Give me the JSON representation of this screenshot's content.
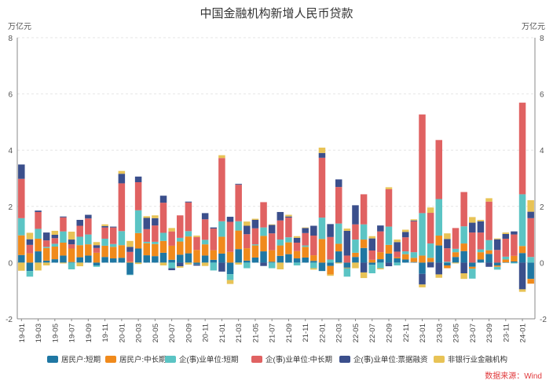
{
  "chart_data": {
    "type": "bar",
    "stacked": true,
    "title": "中国金融机构新增人民币贷款",
    "y_unit_left": "万亿元",
    "y_unit_right": "万亿元",
    "ylim": [
      -2,
      8
    ],
    "yticks": [
      -2,
      0,
      2,
      4,
      6,
      8
    ],
    "grid": true,
    "legend_position": "bottom",
    "source_note": "数据来源：Wind",
    "x_tick_labels": [
      "19-01",
      "19-03",
      "19-05",
      "19-07",
      "19-09",
      "19-11",
      "20-01",
      "20-03",
      "20-05",
      "20-07",
      "20-09",
      "20-11",
      "21-01",
      "21-03",
      "21-05",
      "21-07",
      "21-09",
      "21-11",
      "22-01",
      "22-03",
      "22-05",
      "22-07",
      "22-09",
      "22-11",
      "23-01",
      "23-03",
      "23-05",
      "23-07",
      "23-09",
      "23-11",
      "24-01"
    ],
    "categories": [
      "19-01",
      "19-02",
      "19-03",
      "19-04",
      "19-05",
      "19-06",
      "19-07",
      "19-08",
      "19-09",
      "19-10",
      "19-11",
      "19-12",
      "20-01",
      "20-02",
      "20-03",
      "20-04",
      "20-05",
      "20-06",
      "20-07",
      "20-08",
      "20-09",
      "20-10",
      "20-11",
      "20-12",
      "21-01",
      "21-02",
      "21-03",
      "21-04",
      "21-05",
      "21-06",
      "21-07",
      "21-08",
      "21-09",
      "21-10",
      "21-11",
      "21-12",
      "22-01",
      "22-02",
      "22-03",
      "22-04",
      "22-05",
      "22-06",
      "22-07",
      "22-08",
      "22-09",
      "22-10",
      "22-11",
      "22-12",
      "23-01",
      "23-02",
      "23-03",
      "23-04",
      "23-05",
      "23-06",
      "23-07",
      "23-08",
      "23-09",
      "23-10",
      "23-11",
      "23-12",
      "24-01",
      "24-02"
    ],
    "series": [
      {
        "name": "居民户:短期",
        "color": "#1f77a3",
        "values": [
          0.27,
          -0.3,
          0.4,
          0.07,
          0.12,
          0.25,
          0.02,
          0.19,
          0.25,
          -0.1,
          0.2,
          0.15,
          0.17,
          -0.43,
          0.5,
          0.26,
          0.23,
          0.35,
          0.1,
          0.28,
          0.33,
          -0.05,
          0.25,
          0.1,
          0.32,
          -0.41,
          0.48,
          0.07,
          0.18,
          0.4,
          0.03,
          0.24,
          0.3,
          0.15,
          0.18,
          0.06,
          -0.3,
          -0.12,
          0.4,
          -0.18,
          0.2,
          0.52,
          -0.08,
          0.12,
          0.32,
          0.15,
          0.11,
          0.02,
          -0.4,
          0.02,
          0.61,
          -0.1,
          0.2,
          0.41,
          -0.15,
          0.11,
          0.31,
          -0.1,
          0.01,
          0.04,
          0.34,
          -0.58
        ]
      },
      {
        "name": "居民户:中长期",
        "color": "#f08a1c",
        "values": [
          0.7,
          0.33,
          0.45,
          0.45,
          0.45,
          0.46,
          0.48,
          0.43,
          0.4,
          0.35,
          0.4,
          0.41,
          0.45,
          0.03,
          0.55,
          0.43,
          0.43,
          0.42,
          0.5,
          0.47,
          0.6,
          0.45,
          0.4,
          0.34,
          0.6,
          0.38,
          0.66,
          0.44,
          0.43,
          0.55,
          0.41,
          0.37,
          0.42,
          0.26,
          0.38,
          0.2,
          0.84,
          -0.3,
          0.27,
          -0.02,
          0.15,
          0.3,
          0.1,
          0.25,
          0.31,
          0.04,
          0.19,
          0.15,
          0.25,
          0.15,
          0.35,
          -0.1,
          0.17,
          0.27,
          -0.07,
          0.26,
          0.13,
          -0.05,
          0.1,
          0.2,
          0.25,
          -0.17
        ]
      },
      {
        "name": "企(事)业单位:短期",
        "color": "#5bc4c4",
        "values": [
          0.61,
          -0.2,
          0.35,
          0.04,
          0.1,
          0.4,
          -0.24,
          0.3,
          0.35,
          -0.05,
          0.25,
          0.1,
          0.5,
          -0.01,
          0.81,
          0.05,
          0.08,
          0.29,
          -0.2,
          0.13,
          0.19,
          -0.01,
          0.16,
          -0.28,
          0.55,
          -0.21,
          0.33,
          -0.2,
          0.04,
          0.3,
          -0.2,
          0.21,
          0.18,
          -0.1,
          0.05,
          -0.2,
          0.76,
          0.11,
          0.72,
          -0.3,
          0.47,
          0.54,
          -0.3,
          -0.2,
          0.65,
          -0.1,
          0.1,
          0.2,
          1.51,
          0.51,
          1.3,
          0.03,
          0.12,
          0.61,
          -0.35,
          0.1,
          0.36,
          -0.1,
          0.1,
          -0.03,
          1.84,
          0.2
        ]
      },
      {
        "name": "企(事)业单位:中长期",
        "color": "#e06262",
        "values": [
          1.4,
          0.3,
          0.6,
          0.23,
          0.2,
          0.5,
          0.15,
          0.39,
          0.57,
          0.17,
          0.4,
          0.59,
          1.7,
          0.35,
          1.0,
          0.45,
          0.58,
          1.07,
          0.51,
          0.8,
          1.02,
          0.46,
          0.73,
          0.77,
          2.25,
          1.07,
          1.3,
          0.5,
          0.57,
          0.9,
          0.6,
          0.68,
          0.7,
          0.3,
          0.44,
          0.7,
          2.13,
          0.8,
          1.3,
          0.25,
          0.54,
          1.07,
          0.33,
          0.74,
          1.33,
          0.2,
          0.5,
          1.1,
          3.51,
          1.09,
          2.1,
          0.48,
          0.74,
          1.22,
          1.07,
          0.6,
          1.37,
          0.45,
          0.64,
          0.76,
          3.26,
          1.38
        ]
      },
      {
        "name": "企(事)业单位:票据融资",
        "color": "#3b4f8c",
        "values": [
          0.51,
          0.2,
          0.05,
          0.28,
          0.12,
          0.03,
          0.17,
          0.21,
          0.13,
          0.1,
          0.05,
          0.03,
          0.34,
          0.18,
          0.2,
          0.4,
          0.26,
          0.25,
          -0.07,
          -0.13,
          0.03,
          -0.05,
          0.22,
          0.04,
          -0.32,
          0.18,
          0.03,
          0.3,
          0.3,
          -0.12,
          0.3,
          0.3,
          0.04,
          0.17,
          0.18,
          0.35,
          0.17,
          0.46,
          0.27,
          0.88,
          0.68,
          -0.35,
          0.43,
          0.21,
          -0.13,
          0.34,
          0.19,
          0.03,
          -0.38,
          -0.17,
          -0.42,
          0.33,
          0.0,
          -0.38,
          0.35,
          0.4,
          -0.15,
          0.38,
          0.17,
          0.11,
          -0.95,
          0.23
        ]
      },
      {
        "name": "非银行业金融机构",
        "color": "#e8c356",
        "values": [
          -0.29,
          0.23,
          -0.28,
          -0.1,
          0.14,
          -0.03,
          0.28,
          -0.13,
          0.0,
          0.11,
          0.06,
          0.0,
          0.1,
          0.21,
          -0.05,
          0.06,
          0.1,
          -0.1,
          0.12,
          -0.05,
          -0.07,
          0.05,
          -0.12,
          0.0,
          0.1,
          -0.14,
          -0.07,
          0.15,
          0.04,
          0.0,
          0.02,
          -0.24,
          0.06,
          0.06,
          0.02,
          -0.05,
          0.19,
          -0.05,
          -0.03,
          0.08,
          -0.2,
          -0.2,
          0.08,
          -0.04,
          0.07,
          0.09,
          0.08,
          0.04,
          -0.1,
          0.19,
          -0.12,
          0.2,
          -0.03,
          -0.2,
          0.2,
          0.05,
          0.12,
          0.03,
          0.05,
          0.0,
          -0.09,
          0.41
        ]
      }
    ]
  }
}
